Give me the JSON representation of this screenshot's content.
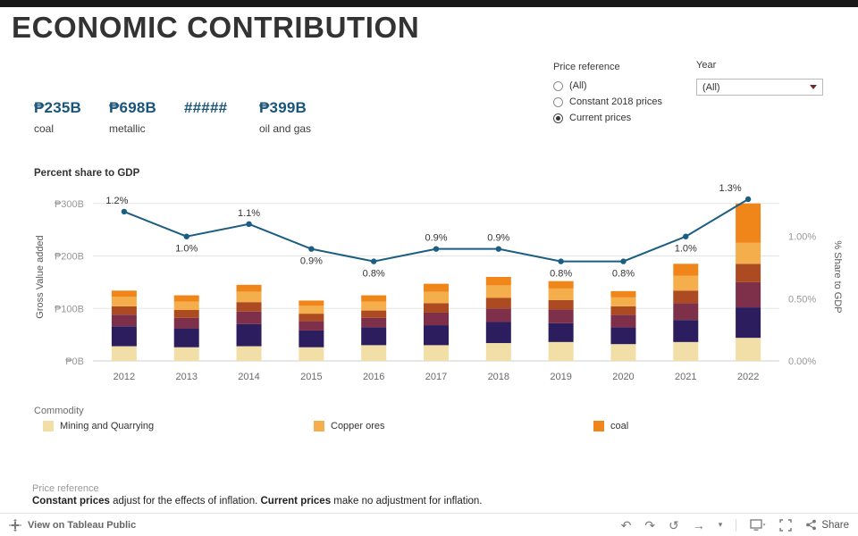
{
  "header": {
    "title": "ECONOMIC CONTRIBUTION"
  },
  "kpis": [
    {
      "value": "₱235B",
      "label": "coal"
    },
    {
      "value": "₱698B",
      "label": "metallic"
    },
    {
      "value": "#####",
      "label": ""
    },
    {
      "value": "₱399B",
      "label": "oil and gas"
    }
  ],
  "kpi_color": "#19547a",
  "filters": {
    "price_reference": {
      "label": "Price reference",
      "options": [
        "(All)",
        "Constant 2018 prices",
        "Current prices"
      ],
      "selected": "Current prices"
    },
    "year": {
      "label": "Year",
      "value": "(All)"
    }
  },
  "chart_data": {
    "type": "combo",
    "title": "Percent share to GDP",
    "categories": [
      "2012",
      "2013",
      "2014",
      "2015",
      "2016",
      "2017",
      "2018",
      "2019",
      "2020",
      "2021",
      "2022"
    ],
    "bar_series": [
      {
        "name": "Mining and Quarrying",
        "color": "#F2DFA7",
        "values": [
          28,
          26,
          28,
          26,
          30,
          30,
          34,
          36,
          32,
          36,
          44
        ]
      },
      {
        "name": "unlabeled-segment-1",
        "color": "#2C1E5E",
        "values": [
          38,
          36,
          42,
          32,
          34,
          38,
          40,
          36,
          32,
          42,
          58
        ]
      },
      {
        "name": "unlabeled-segment-2",
        "color": "#7E2F49",
        "values": [
          22,
          20,
          24,
          18,
          18,
          24,
          26,
          26,
          24,
          32,
          48
        ]
      },
      {
        "name": "unlabeled-segment-3",
        "color": "#AC4A21",
        "values": [
          16,
          15,
          18,
          14,
          14,
          18,
          20,
          18,
          16,
          24,
          35
        ]
      },
      {
        "name": "Copper ores",
        "color": "#F5AE4C",
        "values": [
          18,
          16,
          20,
          15,
          17,
          22,
          24,
          22,
          17,
          28,
          40
        ]
      },
      {
        "name": "coal",
        "color": "#F0861A",
        "values": [
          12,
          12,
          13,
          10,
          12,
          15,
          16,
          14,
          12,
          23,
          75
        ]
      }
    ],
    "line": {
      "name": "% Share to GDP",
      "color": "#1B5E82",
      "values": [
        1.2,
        1.0,
        1.1,
        0.9,
        0.8,
        0.9,
        0.9,
        0.8,
        0.8,
        1.0,
        1.3
      ],
      "labels": [
        "1.2%",
        "1.0%",
        "1.1%",
        "0.9%",
        "0.8%",
        "0.9%",
        "0.9%",
        "0.8%",
        "0.8%",
        "1.0%",
        "1.3%"
      ],
      "label_positions": [
        "above",
        "below",
        "above",
        "below",
        "below",
        "above",
        "above",
        "below",
        "below",
        "below",
        "above"
      ],
      "label_dx": [
        -8,
        0,
        0,
        0,
        0,
        0,
        0,
        0,
        0,
        0,
        -20
      ]
    },
    "left_axis": {
      "title": "Gross Value added",
      "max": 320,
      "ticks": [
        {
          "v": 0,
          "label": "₱0B"
        },
        {
          "v": 100,
          "label": "₱100B"
        },
        {
          "v": 200,
          "label": "₱200B"
        },
        {
          "v": 300,
          "label": "₱300B"
        }
      ]
    },
    "right_axis": {
      "title": "% Share to GDP",
      "max": 1.35,
      "ticks": [
        {
          "v": 0,
          "label": "0.00%"
        },
        {
          "v": 0.5,
          "label": "0.50%"
        },
        {
          "v": 1.0,
          "label": "1.00%"
        }
      ]
    },
    "grid": true,
    "legend_title": "Commodity",
    "legend_visible": [
      {
        "label": "Mining and Quarrying",
        "color": "#F2DFA7"
      },
      {
        "label": "Copper ores",
        "color": "#F5AE4C"
      },
      {
        "label": "coal",
        "color": "#F0861A"
      }
    ]
  },
  "notes": {
    "heading": "Price reference",
    "parts": [
      {
        "text": "Constant prices",
        "bold": true
      },
      {
        "text": " adjust for the effects of inflation. ",
        "bold": false
      },
      {
        "text": "Current prices",
        "bold": true
      },
      {
        "text": " make no adjustment for inflation.",
        "bold": false
      }
    ]
  },
  "footer": {
    "view_label": "View on Tableau Public",
    "share_label": "Share"
  }
}
